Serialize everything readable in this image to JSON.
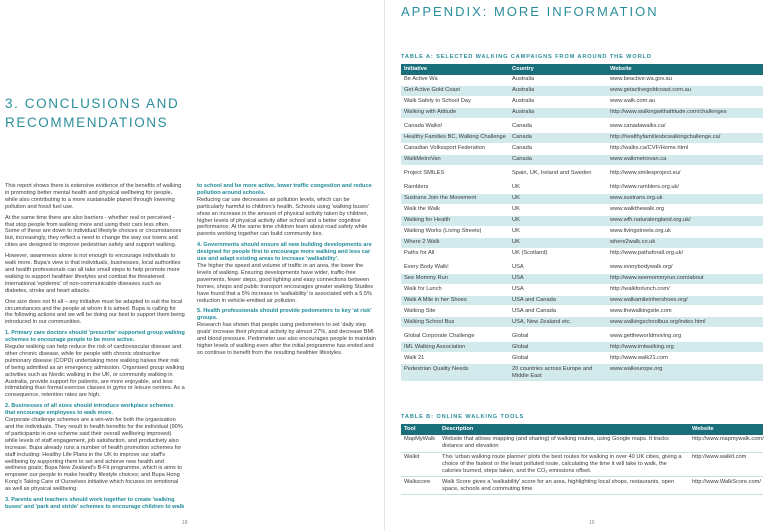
{
  "left_page": {
    "heading": "3. CONCLUSIONS AND RECOMMENDATIONS",
    "blocks": [
      {
        "text": "This report shows there is extensive evidence of the benefits of walking in promoting better mental health and physical wellbeing for people, while also contributing to a more sustainable planet through lowering pollution and fossil fuel use."
      },
      {
        "text": "At the same time there are also barriers - whether real or perceived - that stop people from walking more and using their cars less often. Some of these are down to individual lifestyle choices or circumstances but, increasingly, they reflect a need to change the way our towns and cities are designed to improve pedestrian safety and support walking."
      },
      {
        "text": "However, awareness alone is not enough to encourage individuals to walk more. Bupa's view is that individuals, businesses, local authorities and health professionals can all take small steps to help promote more walking to support healthier lifestyles and combat the threatened international 'epidemic' of non-communicable diseases such as diabetes, stroke and heart attacks."
      },
      {
        "text": "One size does not fit all – any initiative must be adapted to suit the local circumstances and the people at whom it is aimed. Bupa is calling for the following actions and we will be doing our best to support them being introduced in our communities."
      },
      {
        "heading": "1. Primary care doctors should 'prescribe' supported group walking schemes to encourage people to be more active."
      },
      {
        "text": "Regular walking can help reduce the risk of cardiovascular disease and other chronic disease, while for people with chronic obstructive pulmonary disease (COPD) undertaking more walking halves their risk of being admitted as an emergency admission. Organised group walking activities such as Nordic walking in the UK, or community walking in Australia, provide support for patients, are more enjoyable, and less intimidating than formal exercise classes in gyms or leisure centres. As a consequence, retention rates are high."
      },
      {
        "heading": "2. Businesses of all sizes should introduce workplace schemes that encourage employees to walk more."
      },
      {
        "text": "Corporate challenge schemes are a win-win for both the organisation and the individuals. They result in health benefits for the individual (90% of participants in one scheme said their overall wellbeing improved) while levels of staff engagement, job satisfaction, and productivity also increase. Bupa already runs a number of health promotion schemes for staff including: Healthy Life Plans in the UK to improve our staff's wellbeing by supporting them to set and achieve new health and wellness goals; Bupa New Zealand's B-Fit programme, which is aims to empower our people to make healthy lifestyle choices; and Bupa Hong Kong's Taking Care of Ourselves initiative which focuses on emotional as well as physical wellbeing."
      },
      {
        "heading": "3. Parents and teachers should work together to create 'walking buses' and 'park and stride' schemes to encourage children to walk to school and be more active, lower traffic congestion and reduce pollution around schools."
      },
      {
        "text": "Reducing car use decreases air pollution levels, which can be particularly harmful to children's health. Schools using 'walking buses' show an increase in the amount of physical activity taken by children, higher levels of physical activity after school and a better cognitive performance. At the same time children learn about road safety while parents working together can build community ties."
      },
      {
        "heading": "4. Governments should ensure all new building developments are designed for people first to encourage more walking and less car use and adapt existing areas to increase 'walkability'."
      },
      {
        "text": "The higher the speed and volume of traffic in an area, the lower the levels of walking. Ensuring developments have wider, traffic-free pavements, fewer steps, good lighting and easy connections between homes, shops and public transport encourages greater walking Studies have found that a 5% increase in 'walkability' is associated with a 5.5% reduction in vehicle-emitted air pollution."
      },
      {
        "heading": "5. Health professionals should provide pedometers to key 'at risk' groups."
      },
      {
        "text": "Research has shown that people using pedometers to set 'daily step goals' increase their physical activity by almost 27%, and decrease BMI and blood pressure. Pedometer use also encourages people to maintain higher levels of walking even after the initial programme has ended and so continue to benefit from the resulting healthier lifestyles."
      }
    ],
    "page_number": "18"
  },
  "right_page": {
    "title": "APPENDIX: MORE INFORMATION",
    "table_a": {
      "caption": "TABLE A: SELECTED WALKING CAMPAIGNS FROM AROUND THE WORLD",
      "columns": [
        "Initiative",
        "Country",
        "Website"
      ],
      "groups": [
        [
          [
            "Be Active Wa",
            "Australia",
            "www.beactive.wa.gov.au"
          ],
          [
            "Get Active Gold Coast",
            "Australia",
            "www.getactivegoldcoast.com.au"
          ],
          [
            "Walk Safely to School Day",
            "Australia",
            "www.walk.com.au"
          ],
          [
            "Walking with Attitude",
            "Australia",
            "http://www.walkingwithattitude.com/challenges"
          ]
        ],
        [
          [
            "Canada Walks!",
            "Canada",
            "www.canadawalks.ca/"
          ],
          [
            "Healthy Families BC, Walking Challenge",
            "Canada",
            "http://healthyfamiliesbcwalkingchallenge.ca/"
          ],
          [
            "Canadian Volkssport Federation",
            "Canada",
            "http://walks.ca/CVF/Home.html"
          ],
          [
            "WalkMetroVan",
            "Canada",
            "www.walkmetrovan.ca"
          ]
        ],
        [
          [
            "Project SMILES",
            "Spain, UK, Ireland and Sweden",
            "http://www.smilesproject.eu/"
          ]
        ],
        [
          [
            "Ramblers",
            "UK",
            "http://www.ramblers.org.uk/"
          ],
          [
            "Sustrans Join the Movement",
            "UK",
            "www.sustrans.org.uk"
          ],
          [
            "Walk the Walk",
            "UK",
            "www.walkthewalk.org"
          ],
          [
            "Walking for Health",
            "UK",
            "www.wfh.naturalengland.org.uk/"
          ],
          [
            "Walking Works (Living Streets)",
            "UK",
            "www.livingstreets.org.uk"
          ],
          [
            "Where 2 Walk",
            "UK",
            "where2walk.co.uk"
          ],
          [
            "Paths for All",
            "UK (Scotland)",
            "http://www.pathsforall.org.uk/"
          ]
        ],
        [
          [
            "Every Body Walk!",
            "USA",
            "www.everybodywalk.org/"
          ],
          [
            "See Mommy Run",
            "USA",
            "http://www.seemommyrun.com/about"
          ],
          [
            "Walk for Lunch",
            "USA",
            "http://walkforlunch.com/"
          ],
          [
            "Walk A Mile in her Shoes",
            "USA and Canada",
            "www.walkamileinhershoes.org/"
          ],
          [
            "Walking Site",
            "USA and Canada",
            "www.thewalkingsite.com"
          ],
          [
            "Walking School Bus",
            "USA, New Zealand etc.",
            "www.walkingschoolbus.org/index.html"
          ]
        ],
        [
          [
            "Global Corporate Challenge",
            "Global",
            "www.gettheworldmoving.org"
          ],
          [
            "IML Walking Association",
            "Global",
            "http://www.imlwalking.org"
          ],
          [
            "Walk 21",
            "Global",
            "http://www.walk21.com"
          ],
          [
            "Pedestrian Quality Needs",
            "20 countries across Europe and Middle East",
            "www.walkeurope.org"
          ]
        ]
      ]
    },
    "table_b": {
      "caption": "TABLE B: ONLINE WALKING TOOLS",
      "columns": [
        "Tool",
        "Description",
        "Website"
      ],
      "rows": [
        [
          "MapMyWalk",
          "Website that allows mapping (and sharing) of walking routes, using Google maps. It tracks distance and elevation",
          "http://www.mapmywalk.com/"
        ],
        [
          "Walkit",
          "This 'urban walking route planner' plots the best routes for walking in over 40 UK cities, giving a choice of the fastest or the least polluted route, calculating the time it will take to walk, the calories burned, steps taken, and the CO₂ emissions offset.",
          "http://www.walkit.com"
        ],
        [
          "Walkscore",
          "Walk Score gives a 'walkability' score for an area, highlighting local shops, restaurants, open space, schools and commuting time",
          "http://www.WalkScore.com/"
        ]
      ]
    },
    "page_number": "19"
  }
}
